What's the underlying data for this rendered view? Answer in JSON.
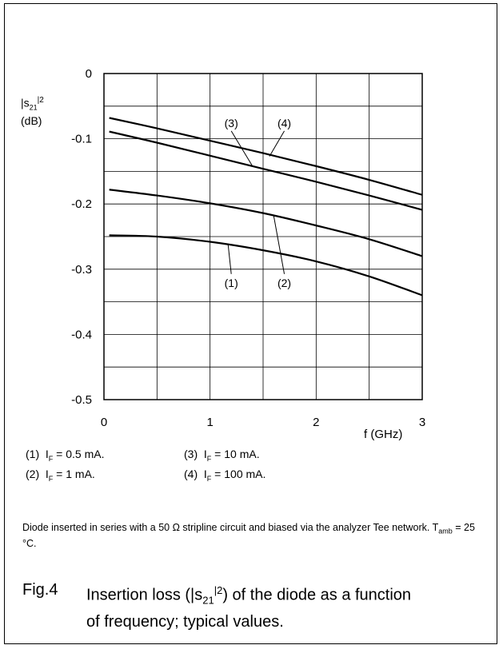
{
  "chart_data": {
    "type": "line",
    "ylabel_line1": "|s",
    "ylabel_sub": "21",
    "ylabel_sup": "|2",
    "ylabel_unit": "(dB)",
    "xlabel": "f (GHz)",
    "xlim": [
      0,
      3
    ],
    "ylim": [
      -0.5,
      0
    ],
    "x_ticks": [
      "0",
      "1",
      "2",
      "3"
    ],
    "y_ticks": [
      "0",
      "-0.1",
      "-0.2",
      "-0.3",
      "-0.4",
      "-0.5"
    ],
    "grid": true,
    "series": [
      {
        "name": "(1)",
        "x": [
          0.05,
          0.5,
          1.0,
          1.5,
          2.0,
          2.5,
          3.0
        ],
        "y": [
          -0.248,
          -0.25,
          -0.258,
          -0.271,
          -0.288,
          -0.311,
          -0.34
        ]
      },
      {
        "name": "(2)",
        "x": [
          0.05,
          0.5,
          1.0,
          1.5,
          2.0,
          2.5,
          3.0
        ],
        "y": [
          -0.178,
          -0.187,
          -0.199,
          -0.214,
          -0.233,
          -0.254,
          -0.28
        ]
      },
      {
        "name": "(3)",
        "x": [
          0.05,
          0.5,
          1.0,
          1.5,
          2.0,
          2.5,
          3.0
        ],
        "y": [
          -0.089,
          -0.106,
          -0.126,
          -0.146,
          -0.166,
          -0.187,
          -0.209
        ]
      },
      {
        "name": "(4)",
        "x": [
          0.05,
          0.5,
          1.0,
          1.5,
          2.0,
          2.5,
          3.0
        ],
        "y": [
          -0.068,
          -0.084,
          -0.103,
          -0.122,
          -0.142,
          -0.163,
          -0.186
        ]
      }
    ],
    "annotations": [
      {
        "label": "(1)",
        "x": 1.2,
        "y": -0.327,
        "tip_x": 1.17,
        "tip_y": -0.262
      },
      {
        "label": "(2)",
        "x": 1.7,
        "y": -0.327,
        "tip_x": 1.6,
        "tip_y": -0.218
      },
      {
        "label": "(3)",
        "x": 1.2,
        "y": -0.082,
        "tip_x": 1.4,
        "tip_y": -0.142
      },
      {
        "label": "(4)",
        "x": 1.7,
        "y": -0.082,
        "tip_x": 1.56,
        "tip_y": -0.127
      }
    ]
  },
  "legend": [
    {
      "num": "(1)",
      "sym": "I",
      "sub": "F",
      "val": " = 0.5 mA."
    },
    {
      "num": "(3)",
      "sym": "I",
      "sub": "F",
      "val": " = 10 mA."
    },
    {
      "num": "(2)",
      "sym": "I",
      "sub": "F",
      "val": " = 1 mA."
    },
    {
      "num": "(4)",
      "sym": "I",
      "sub": "F",
      "val": " = 100 mA."
    }
  ],
  "note": {
    "text": "Diode inserted in series with a 50 Ω stripline circuit and biased via the analyzer Tee network. T",
    "sub": "amb",
    "tail": " = 25 °C."
  },
  "caption": {
    "number": "Fig.4",
    "text": "Insertion loss (|s21|2) of the diode as a function of frequency; typical values.",
    "t1": "Insertion loss (|s",
    "t1_sub": "21",
    "t1_sup": "|2",
    "t2": ") of the diode as a function of frequency; typical values."
  }
}
